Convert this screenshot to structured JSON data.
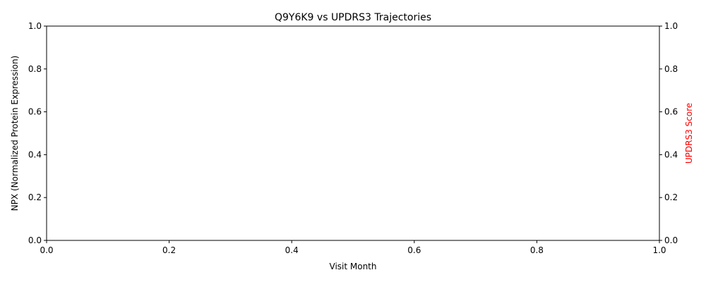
{
  "chart_data": {
    "type": "line",
    "title": "Q9Y6K9 vs UPDRS3 Trajectories",
    "xlabel": "Visit Month",
    "ylabel": "NPX (Normalized Protein Expression)",
    "y2label": "UPDRS3 Score",
    "xlim": [
      0,
      1
    ],
    "ylim": [
      0,
      1
    ],
    "y2lim": [
      0,
      1
    ],
    "x_ticks": [
      "0.0",
      "0.2",
      "0.4",
      "0.6",
      "0.8",
      "1.0"
    ],
    "y_ticks": [
      "0.0",
      "0.2",
      "0.4",
      "0.6",
      "0.8",
      "1.0"
    ],
    "y2_ticks": [
      "0.0",
      "0.2",
      "0.4",
      "0.6",
      "0.8",
      "1.0"
    ],
    "series": [],
    "grid": false,
    "colors": {
      "axis": "#000000",
      "y2label": "#ff0000",
      "background": "#ffffff"
    }
  }
}
